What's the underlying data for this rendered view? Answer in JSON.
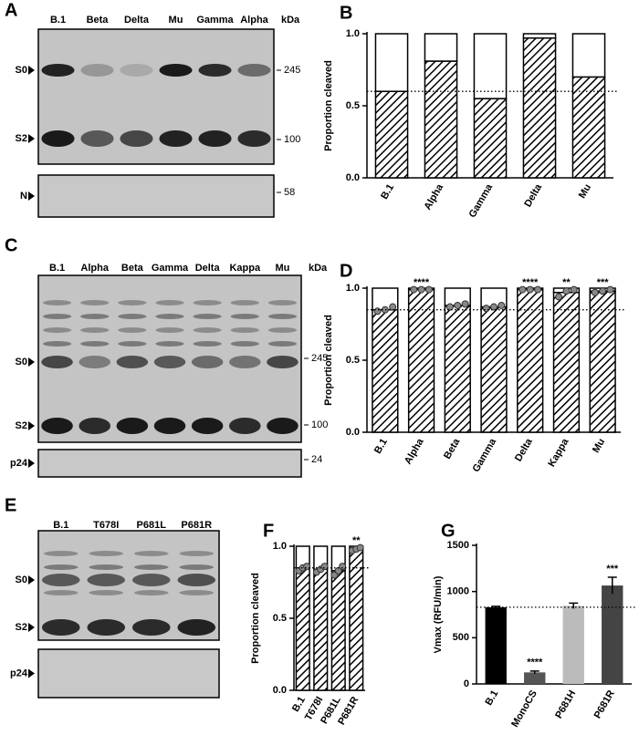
{
  "blots": [
    {
      "panel": "A",
      "lanes": [
        "B.1",
        "Beta",
        "Delta",
        "Mu",
        "Gamma",
        "Alpha"
      ],
      "unit": "kDa",
      "markers": [
        "S0",
        "S2"
      ],
      "ladder": [
        245,
        100
      ],
      "loading": {
        "marker": "N",
        "ladder": 58
      }
    },
    {
      "panel": "C",
      "lanes": [
        "B.1",
        "Alpha",
        "Beta",
        "Gamma",
        "Delta",
        "Kappa",
        "Mu"
      ],
      "unit": "kDa",
      "markers": [
        "S0",
        "S2"
      ],
      "ladder": [
        245,
        100
      ],
      "loading": {
        "marker": "p24",
        "ladder": 24
      }
    },
    {
      "panel": "E",
      "lanes": [
        "B.1",
        "T678I",
        "P681L",
        "P681R"
      ],
      "markers": [
        "S0",
        "S2"
      ],
      "loading": {
        "marker": "p24"
      }
    }
  ],
  "chart_data": [
    {
      "panel": "B",
      "type": "stacked_bar",
      "ylabel": "Proportion cleaved",
      "categories": [
        "B.1",
        "Alpha",
        "Gamma",
        "Delta",
        "Mu"
      ],
      "series": [
        {
          "color": "#000000",
          "values": [
            0.6,
            0.81,
            0.55,
            0.97,
            0.7
          ]
        },
        {
          "color": "#ffffff",
          "values": [
            0.4,
            0.19,
            0.45,
            0.03,
            0.3
          ]
        }
      ],
      "reference_line": 0.6,
      "ylim": [
        0,
        1
      ],
      "yticks": [
        {
          "value": 0,
          "label": "0.0"
        },
        0.5,
        {
          "value": 1,
          "label": "1.0"
        }
      ]
    },
    {
      "panel": "D",
      "type": "stacked_bar",
      "ylabel": "Proportion cleaved",
      "categories": [
        "B.1",
        "Alpha",
        "Beta",
        "Gamma",
        "Delta",
        "Kappa",
        "Mu"
      ],
      "series": [
        {
          "color": "#000000",
          "values": [
            0.85,
            0.99,
            0.88,
            0.87,
            0.99,
            0.97,
            0.98
          ]
        },
        {
          "color": "#ffffff",
          "values": [
            0.15,
            0.01,
            0.12,
            0.13,
            0.01,
            0.03,
            0.02
          ]
        }
      ],
      "points": [
        [
          0.84,
          0.85,
          0.87
        ],
        [
          0.99,
          0.99,
          0.99
        ],
        [
          0.87,
          0.88,
          0.89
        ],
        [
          0.86,
          0.87,
          0.88
        ],
        [
          0.99,
          0.99,
          0.99
        ],
        [
          0.94,
          0.98,
          0.99
        ],
        [
          0.97,
          0.98,
          0.99
        ]
      ],
      "annotations": [
        null,
        "****",
        null,
        null,
        "****",
        "**",
        "***"
      ],
      "reference_line": 0.85,
      "ylim": [
        0,
        1
      ],
      "yticks": [
        {
          "value": 0,
          "label": "0.0"
        },
        0.5,
        {
          "value": 1,
          "label": "1.0"
        }
      ]
    },
    {
      "panel": "F",
      "type": "stacked_bar",
      "ylabel": "Proportion cleaved",
      "categories": [
        "B.1",
        "T678I",
        "P681L",
        "P681R"
      ],
      "series": [
        {
          "color": "#000000",
          "values": [
            0.85,
            0.84,
            0.83,
            0.98
          ]
        },
        {
          "color": "#ffffff",
          "values": [
            0.15,
            0.16,
            0.17,
            0.02
          ]
        }
      ],
      "points": [
        [
          0.83,
          0.85,
          0.86
        ],
        [
          0.82,
          0.84,
          0.86
        ],
        [
          0.8,
          0.83,
          0.86
        ],
        [
          0.97,
          0.98,
          0.99
        ]
      ],
      "annotations": [
        null,
        null,
        null,
        "**"
      ],
      "reference_line": 0.85,
      "ylim": [
        0,
        1
      ],
      "yticks": [
        {
          "value": 0,
          "label": "0.0"
        },
        0.5,
        {
          "value": 1,
          "label": "1.0"
        }
      ]
    },
    {
      "panel": "G",
      "type": "bar",
      "ylabel": "Vmax (RFU/min)",
      "categories": [
        "B.1",
        "MonoCS",
        "P681H",
        "P681R"
      ],
      "values": [
        830,
        125,
        845,
        1065
      ],
      "errors": [
        10,
        15,
        30,
        90
      ],
      "colors": [
        "#000000",
        "#555555",
        "#bbbbbb",
        "#444444"
      ],
      "annotations": [
        null,
        "****",
        null,
        "***"
      ],
      "reference_line": 830,
      "ylim": [
        0,
        1500
      ],
      "yticks": [
        0,
        500,
        1000,
        1500
      ]
    }
  ]
}
